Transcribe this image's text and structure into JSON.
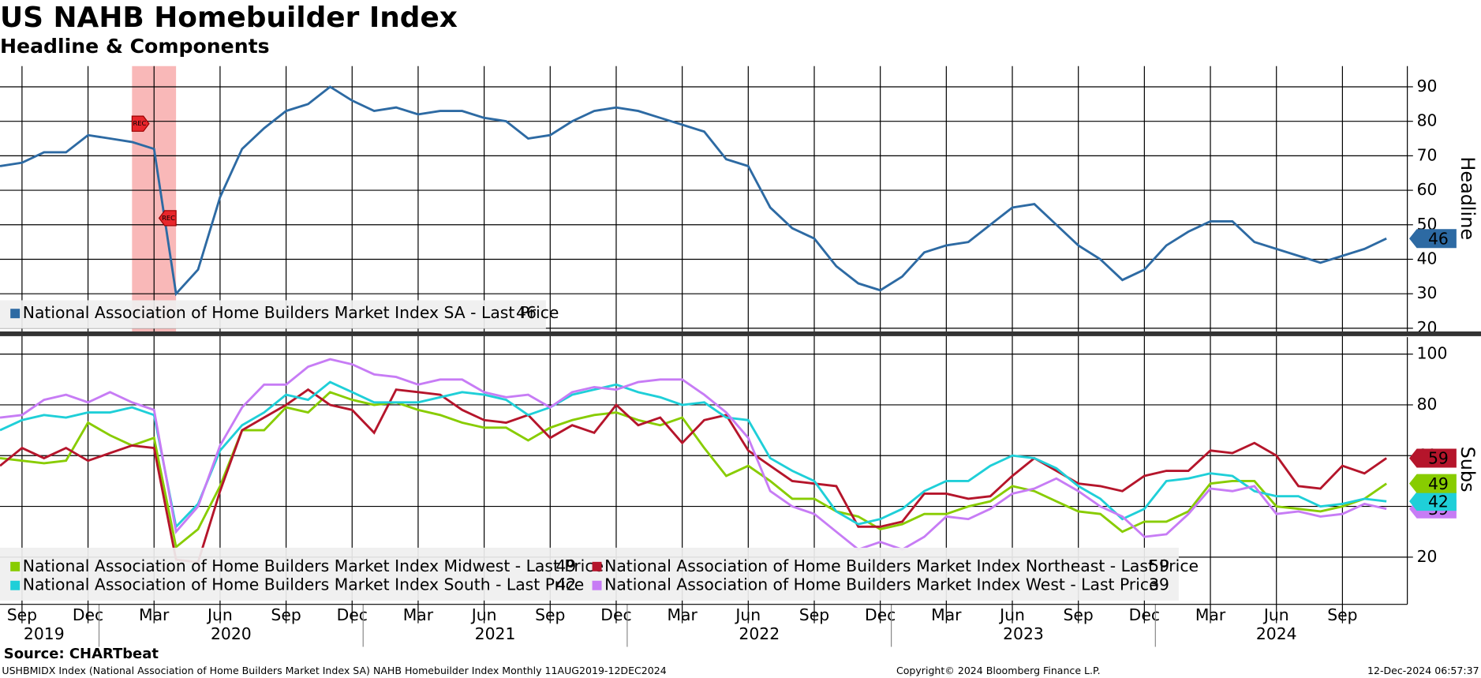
{
  "title": "US NAHB Homebuilder Index",
  "subtitle": "Headline & Components",
  "source": "Source: CHARTbeat",
  "footer": {
    "left": "USHBMIDX Index (National Association of Home Builders Market Index SA) NAHB Homebuilder Index  Monthly 11AUG2019-12DEC2024",
    "center": "Copyright© 2024 Bloomberg Finance L.P.",
    "right": "12-Dec-2024 06:57:37"
  },
  "x_axis": {
    "x": [
      "2019-08",
      "2019-09",
      "2019-10",
      "2019-11",
      "2019-12",
      "2020-01",
      "2020-02",
      "2020-03",
      "2020-04",
      "2020-05",
      "2020-06",
      "2020-07",
      "2020-08",
      "2020-09",
      "2020-10",
      "2020-11",
      "2020-12",
      "2021-01",
      "2021-02",
      "2021-03",
      "2021-04",
      "2021-05",
      "2021-06",
      "2021-07",
      "2021-08",
      "2021-09",
      "2021-10",
      "2021-11",
      "2021-12",
      "2022-01",
      "2022-02",
      "2022-03",
      "2022-04",
      "2022-05",
      "2022-06",
      "2022-07",
      "2022-08",
      "2022-09",
      "2022-10",
      "2022-11",
      "2022-12",
      "2023-01",
      "2023-02",
      "2023-03",
      "2023-04",
      "2023-05",
      "2023-06",
      "2023-07",
      "2023-08",
      "2023-09",
      "2023-10",
      "2023-11",
      "2023-12",
      "2024-01",
      "2024-02",
      "2024-03",
      "2024-04",
      "2024-05",
      "2024-06",
      "2024-07",
      "2024-08",
      "2024-09",
      "2024-10",
      "2024-11"
    ],
    "xticks": [
      {
        "value": "2019-09",
        "label": "Sep"
      },
      {
        "value": "2019-12",
        "label": "Dec"
      },
      {
        "value": "2020-03",
        "label": "Mar"
      },
      {
        "value": "2020-06",
        "label": "Jun"
      },
      {
        "value": "2020-09",
        "label": "Sep"
      },
      {
        "value": "2020-12",
        "label": "Dec"
      },
      {
        "value": "2021-03",
        "label": "Mar"
      },
      {
        "value": "2021-06",
        "label": "Jun"
      },
      {
        "value": "2021-09",
        "label": "Sep"
      },
      {
        "value": "2021-12",
        "label": "Dec"
      },
      {
        "value": "2022-03",
        "label": "Mar"
      },
      {
        "value": "2022-06",
        "label": "Jun"
      },
      {
        "value": "2022-09",
        "label": "Sep"
      },
      {
        "value": "2022-12",
        "label": "Dec"
      },
      {
        "value": "2023-03",
        "label": "Mar"
      },
      {
        "value": "2023-06",
        "label": "Jun"
      },
      {
        "value": "2023-09",
        "label": "Sep"
      },
      {
        "value": "2023-12",
        "label": "Dec"
      },
      {
        "value": "2024-03",
        "label": "Mar"
      },
      {
        "value": "2024-06",
        "label": "Jun"
      },
      {
        "value": "2024-09",
        "label": "Sep"
      }
    ],
    "years": [
      "2019",
      "2020",
      "2021",
      "2022",
      "2023",
      "2024"
    ],
    "recession": {
      "start": "2020-02",
      "end": "2020-04",
      "label": "REC",
      "color": "#f9b8b8"
    }
  },
  "chart_data": [
    {
      "type": "line",
      "axis_label": "Headline",
      "ylim": [
        18.8,
        96
      ],
      "yticks": [
        20,
        30,
        40,
        50,
        60,
        70,
        80,
        90
      ],
      "grid": true,
      "last_price_label": "Last Price",
      "series": [
        {
          "name": "National Association of Home Builders Market Index SA",
          "color": "#2d6aa3",
          "values": [
            67,
            68,
            71,
            71,
            76,
            75,
            74,
            72,
            30,
            37,
            58,
            72,
            78,
            83,
            85,
            90,
            86,
            83,
            84,
            82,
            83,
            83,
            81,
            80,
            75,
            76,
            80,
            83,
            84,
            83,
            81,
            79,
            77,
            69,
            67,
            55,
            49,
            46,
            38,
            33,
            31,
            35,
            42,
            44,
            45,
            50,
            55,
            56,
            50,
            44,
            40,
            34,
            37,
            44,
            48,
            51,
            51,
            45,
            43,
            41,
            39,
            41,
            43,
            46
          ]
        }
      ]
    },
    {
      "type": "line",
      "axis_label": "Subs",
      "ylim": [
        1.4,
        106.7
      ],
      "yticks": [
        20,
        40,
        60,
        80,
        100
      ],
      "grid": true,
      "last_price_label": "Last Price",
      "series": [
        {
          "name": "National Association of Home Builders Market Index Midwest",
          "color": "#88cc00",
          "values": [
            59,
            58,
            57,
            58,
            73,
            68,
            64,
            67,
            24,
            31,
            48,
            70,
            70,
            79,
            77,
            85,
            82,
            80,
            81,
            78,
            76,
            73,
            71,
            71,
            66,
            71,
            74,
            76,
            77,
            74,
            72,
            75,
            63,
            52,
            56,
            50,
            43,
            43,
            38,
            36,
            31,
            33,
            37,
            37,
            40,
            42,
            48,
            46,
            42,
            38,
            37,
            30,
            34,
            34,
            38,
            49,
            50,
            50,
            40,
            39,
            38,
            40,
            43,
            49
          ]
        },
        {
          "name": "National Association of Home Builders Market Index Northeast",
          "color": "#b5152b",
          "values": [
            56,
            63,
            59,
            63,
            58,
            61,
            64,
            63,
            19,
            18,
            46,
            70,
            75,
            80,
            86,
            80,
            78,
            69,
            86,
            85,
            84,
            78,
            74,
            73,
            76,
            67,
            72,
            69,
            80,
            72,
            75,
            65,
            74,
            76,
            62,
            56,
            50,
            49,
            48,
            32,
            32,
            34,
            45,
            45,
            43,
            44,
            52,
            59,
            54,
            49,
            48,
            46,
            52,
            54,
            54,
            62,
            61,
            65,
            60,
            48,
            47,
            56,
            53,
            59
          ]
        },
        {
          "name": "National Association of Home Builders Market Index South",
          "color": "#1fcfd8",
          "values": [
            70,
            74,
            76,
            75,
            77,
            77,
            79,
            76,
            32,
            41,
            62,
            72,
            77,
            84,
            82,
            89,
            85,
            81,
            81,
            81,
            83,
            85,
            84,
            82,
            76,
            79,
            84,
            86,
            88,
            85,
            83,
            80,
            81,
            75,
            74,
            59,
            54,
            50,
            38,
            33,
            35,
            39,
            46,
            50,
            50,
            56,
            60,
            59,
            55,
            48,
            43,
            35,
            39,
            50,
            51,
            53,
            52,
            46,
            44,
            44,
            40,
            41,
            43,
            42
          ]
        },
        {
          "name": "National Association of Home Builders Market Index West",
          "color": "#c77cf5",
          "values": [
            75,
            76,
            82,
            84,
            81,
            85,
            81,
            78,
            30,
            40,
            64,
            79,
            88,
            88,
            95,
            98,
            96,
            92,
            91,
            88,
            90,
            90,
            85,
            83,
            84,
            79,
            85,
            87,
            86,
            89,
            90,
            90,
            84,
            77,
            67,
            46,
            40,
            37,
            30,
            23,
            26,
            23,
            28,
            36,
            35,
            39,
            45,
            47,
            51,
            46,
            40,
            36,
            28,
            29,
            37,
            47,
            46,
            48,
            37,
            38,
            36,
            37,
            41,
            39
          ]
        }
      ]
    }
  ]
}
